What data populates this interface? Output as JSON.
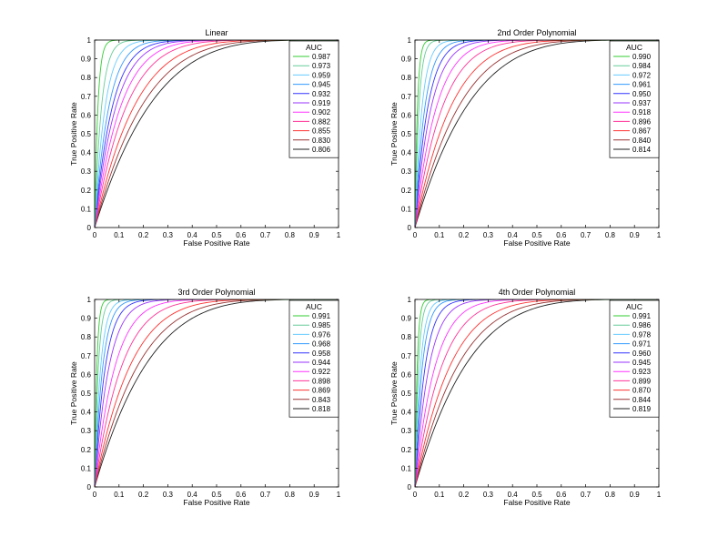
{
  "chart_data": [
    {
      "type": "line",
      "title": "Linear",
      "xlabel": "False Positive Rate",
      "ylabel": "True Positive Rate",
      "xlim": [
        0,
        1
      ],
      "ylim": [
        0,
        1
      ],
      "ticks": [
        "0",
        "0.1",
        "0.2",
        "0.3",
        "0.4",
        "0.5",
        "0.6",
        "0.7",
        "0.8",
        "0.9",
        "1"
      ],
      "legend_title": "AUC",
      "legend_position": "top-right",
      "grid": false,
      "series": [
        {
          "name": "0.987",
          "color": "#33cc33"
        },
        {
          "name": "0.973",
          "color": "#66cc99"
        },
        {
          "name": "0.959",
          "color": "#66ccff"
        },
        {
          "name": "0.945",
          "color": "#3399ff"
        },
        {
          "name": "0.932",
          "color": "#3333ff"
        },
        {
          "name": "0.919",
          "color": "#9933ff"
        },
        {
          "name": "0.902",
          "color": "#ff33ff"
        },
        {
          "name": "0.882",
          "color": "#ff3399"
        },
        {
          "name": "0.855",
          "color": "#ff3333"
        },
        {
          "name": "0.830",
          "color": "#993333"
        },
        {
          "name": "0.806",
          "color": "#222222"
        }
      ]
    },
    {
      "type": "line",
      "title": "2nd Order Polynomial",
      "xlabel": "False Positive Rate",
      "ylabel": "True Positive Rate",
      "xlim": [
        0,
        1
      ],
      "ylim": [
        0,
        1
      ],
      "ticks": [
        "0",
        "0.1",
        "0.2",
        "0.3",
        "0.4",
        "0.5",
        "0.6",
        "0.7",
        "0.8",
        "0.9",
        "1"
      ],
      "legend_title": "AUC",
      "legend_position": "top-right",
      "grid": false,
      "series": [
        {
          "name": "0.990",
          "color": "#33cc33"
        },
        {
          "name": "0.984",
          "color": "#66cc99"
        },
        {
          "name": "0.972",
          "color": "#66ccff"
        },
        {
          "name": "0.961",
          "color": "#3399ff"
        },
        {
          "name": "0.950",
          "color": "#3333ff"
        },
        {
          "name": "0.937",
          "color": "#9933ff"
        },
        {
          "name": "0.918",
          "color": "#ff33ff"
        },
        {
          "name": "0.896",
          "color": "#ff3399"
        },
        {
          "name": "0.867",
          "color": "#ff3333"
        },
        {
          "name": "0.840",
          "color": "#993333"
        },
        {
          "name": "0.814",
          "color": "#222222"
        }
      ]
    },
    {
      "type": "line",
      "title": "3rd Order Polynomial",
      "xlabel": "False Positive Rate",
      "ylabel": "True Positive Rate",
      "xlim": [
        0,
        1
      ],
      "ylim": [
        0,
        1
      ],
      "ticks": [
        "0",
        "0.1",
        "0.2",
        "0.3",
        "0.4",
        "0.5",
        "0.6",
        "0.7",
        "0.8",
        "0.9",
        "1"
      ],
      "legend_title": "AUC",
      "legend_position": "top-right",
      "grid": false,
      "series": [
        {
          "name": "0.991",
          "color": "#33cc33"
        },
        {
          "name": "0.985",
          "color": "#66cc99"
        },
        {
          "name": "0.976",
          "color": "#66ccff"
        },
        {
          "name": "0.968",
          "color": "#3399ff"
        },
        {
          "name": "0.958",
          "color": "#3333ff"
        },
        {
          "name": "0.944",
          "color": "#9933ff"
        },
        {
          "name": "0.922",
          "color": "#ff33ff"
        },
        {
          "name": "0.898",
          "color": "#ff3399"
        },
        {
          "name": "0.869",
          "color": "#ff3333"
        },
        {
          "name": "0.843",
          "color": "#993333"
        },
        {
          "name": "0.818",
          "color": "#222222"
        }
      ]
    },
    {
      "type": "line",
      "title": "4th Order Polynomial",
      "xlabel": "False Positive Rate",
      "ylabel": "True Positive Rate",
      "xlim": [
        0,
        1
      ],
      "ylim": [
        0,
        1
      ],
      "ticks": [
        "0",
        "0.1",
        "0.2",
        "0.3",
        "0.4",
        "0.5",
        "0.6",
        "0.7",
        "0.8",
        "0.9",
        "1"
      ],
      "legend_title": "AUC",
      "legend_position": "top-right",
      "grid": false,
      "series": [
        {
          "name": "0.991",
          "color": "#33cc33"
        },
        {
          "name": "0.986",
          "color": "#66cc99"
        },
        {
          "name": "0.978",
          "color": "#66ccff"
        },
        {
          "name": "0.971",
          "color": "#3399ff"
        },
        {
          "name": "0.960",
          "color": "#3333ff"
        },
        {
          "name": "0.945",
          "color": "#9933ff"
        },
        {
          "name": "0.923",
          "color": "#ff33ff"
        },
        {
          "name": "0.899",
          "color": "#ff3399"
        },
        {
          "name": "0.870",
          "color": "#ff3333"
        },
        {
          "name": "0.844",
          "color": "#993333"
        },
        {
          "name": "0.819",
          "color": "#222222"
        }
      ]
    }
  ]
}
